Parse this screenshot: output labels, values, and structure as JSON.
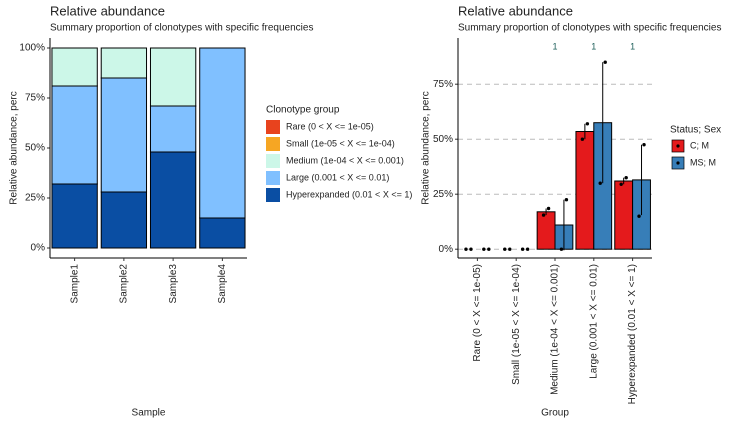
{
  "chart_data": [
    {
      "type": "stacked_bar",
      "title": "Relative abundance",
      "subtitle": "Summary proportion of clonotypes with specific frequencies",
      "x_label": "Sample",
      "y_label": "Relative abundance, perc",
      "legend_title": "Clonotype group",
      "categories": [
        "Sample1",
        "Sample2",
        "Sample3",
        "Sample4"
      ],
      "series": [
        {
          "name": "Rare (0 < X <= 1e-05)",
          "color": "#e8431e",
          "values": [
            0,
            0,
            0,
            0
          ]
        },
        {
          "name": "Small (1e-05 < X <= 1e-04)",
          "color": "#f6a623",
          "values": [
            0,
            0,
            0,
            0
          ]
        },
        {
          "name": "Medium (1e-04 < X <= 0.001)",
          "color": "#ccf7e8",
          "values": [
            19,
            15,
            29,
            0
          ]
        },
        {
          "name": "Large (0.001 < X <= 0.01)",
          "color": "#80c0ff",
          "values": [
            49,
            57,
            23,
            85
          ]
        },
        {
          "name": "Hyperexpanded (0.01 < X <= 1)",
          "color": "#0a4ea3",
          "values": [
            32,
            28,
            48,
            15
          ]
        }
      ],
      "ylim": [
        -5,
        105
      ],
      "yticks": [
        {
          "value": 0,
          "label": "0%"
        },
        {
          "value": 25,
          "label": "25%"
        },
        {
          "value": 50,
          "label": "50%"
        },
        {
          "value": 75,
          "label": "75%"
        },
        {
          "value": 100,
          "label": "100%"
        }
      ],
      "grid": false
    },
    {
      "type": "grouped_bar",
      "title": "Relative abundance",
      "subtitle": "Summary proportion of clonotypes with specific frequencies",
      "x_label": "Group",
      "y_label": "Relative abundance, perc",
      "legend_title": "Status; Sex",
      "categories": [
        "Rare (0 < X <= 1e-05)",
        "Small (1e-05 < X <= 1e-04)",
        "Medium (1e-04 < X <= 0.001)",
        "Large (0.001 < X <= 0.01)",
        "Hyperexpanded (0.01 < X <= 1)"
      ],
      "p_values": [
        null,
        null,
        1,
        1,
        1
      ],
      "series": [
        {
          "name": "C; M",
          "color": "#e41a1c",
          "values": [
            0,
            0,
            17,
            53.5,
            31
          ],
          "errors": [
            0,
            0,
            1.5,
            3.5,
            1.5
          ],
          "points": [
            [
              0,
              0
            ],
            [
              0,
              0
            ],
            [
              15.5,
              18.5
            ],
            [
              50,
              57
            ],
            [
              29.5,
              32.5
            ]
          ]
        },
        {
          "name": "MS; M",
          "color": "#377eb8",
          "values": [
            0,
            0,
            11,
            57.5,
            31.5
          ],
          "errors": [
            0,
            0,
            11.5,
            27.5,
            16
          ],
          "points": [
            [
              0,
              0
            ],
            [
              0,
              0
            ],
            [
              0,
              22.5
            ],
            [
              30,
              85
            ],
            [
              15,
              47.5
            ]
          ]
        }
      ],
      "ylim": [
        -4,
        96
      ],
      "yticks": [
        {
          "value": 0,
          "label": "0%"
        },
        {
          "value": 25,
          "label": "25%"
        },
        {
          "value": 50,
          "label": "50%"
        },
        {
          "value": 75,
          "label": "75%"
        }
      ],
      "grid": true
    }
  ]
}
